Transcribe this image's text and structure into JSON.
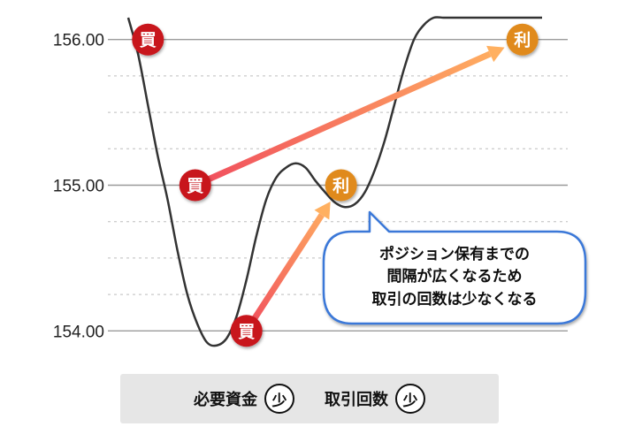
{
  "chart_data": {
    "type": "line",
    "yticks": [
      "156.00",
      "155.00",
      "154.00"
    ],
    "ylim": [
      153.85,
      156.15
    ],
    "grid": true,
    "price_line": {
      "x": [
        0,
        0.5,
        1,
        1.5,
        2,
        2.5,
        3,
        3.5,
        4,
        4.5,
        5,
        5.5,
        6,
        6.5,
        7,
        7.5,
        8,
        8.5,
        9,
        9.5,
        10,
        10.5,
        11,
        11.5,
        12,
        12.5,
        13,
        13.5,
        14,
        14.5,
        15,
        15.5,
        16,
        16.5,
        17,
        17.5,
        18,
        18.5,
        19,
        19.5,
        20,
        20.5,
        21
      ],
      "y": [
        156.15,
        155.9,
        155.55,
        155.2,
        154.9,
        154.55,
        154.25,
        154.05,
        153.92,
        153.9,
        153.95,
        154.1,
        154.35,
        154.65,
        154.9,
        155.05,
        155.12,
        155.15,
        155.12,
        155.03,
        154.95,
        154.88,
        154.85,
        154.87,
        154.95,
        155.1,
        155.3,
        155.55,
        155.8,
        156.0,
        156.1,
        156.15,
        156.15,
        156.15,
        156.15,
        156.15,
        156.15,
        156.15,
        156.15,
        156.15,
        156.15,
        156.15,
        156.15
      ]
    },
    "buy_markers": [
      {
        "label": "買",
        "x": 1.0,
        "y": 156.0
      },
      {
        "label": "買",
        "x": 3.4,
        "y": 155.0
      },
      {
        "label": "買",
        "x": 6.0,
        "y": 154.0
      }
    ],
    "sell_markers": [
      {
        "label": "利",
        "x": 10.8,
        "y": 155.0
      },
      {
        "label": "利",
        "x": 20.0,
        "y": 156.0
      }
    ],
    "arrows": [
      {
        "from": [
          3.4,
          155.0
        ],
        "to": [
          20.0,
          156.0
        ]
      },
      {
        "from": [
          6.0,
          154.0
        ],
        "to": [
          10.8,
          155.0
        ]
      }
    ],
    "callout_lines": [
      "ポジション保有までの",
      "間隔が広くなるため",
      "取引の回数は少なくなる"
    ]
  },
  "legend": {
    "items": [
      {
        "label": "必要資金",
        "badge": "少"
      },
      {
        "label": "取引回数",
        "badge": "少"
      }
    ]
  },
  "colors": {
    "buy": "#c8141e",
    "sell": "#e08a1e",
    "callout_border": "#3a78d8",
    "arrow_start": "#f04a5e",
    "arrow_end": "#ffb060"
  }
}
